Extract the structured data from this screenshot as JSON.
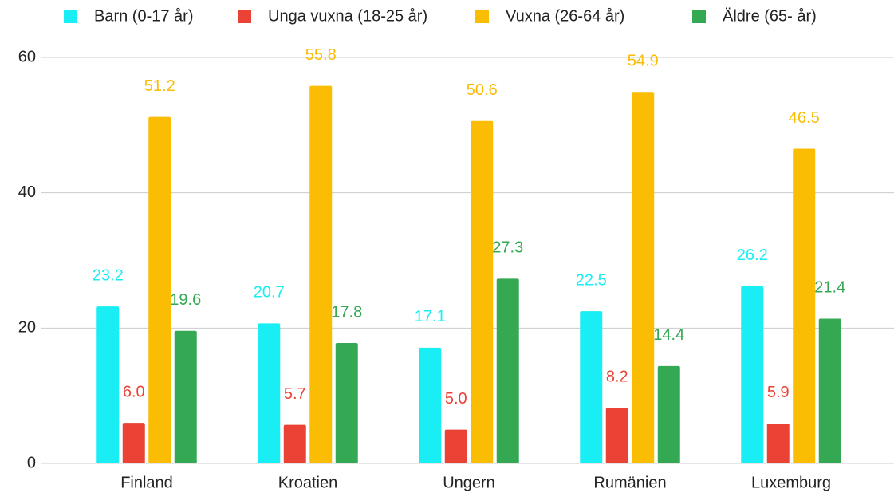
{
  "chart_data": {
    "type": "bar",
    "categories": [
      "Finland",
      "Kroatien",
      "Ungern",
      "Rumänien",
      "Luxemburg"
    ],
    "series": [
      {
        "name": "Barn (0-17 år)",
        "color": "#19eef5",
        "values": [
          23.2,
          20.7,
          17.1,
          22.5,
          26.2
        ],
        "value_labels": [
          "23.2",
          "20.7",
          "17.1",
          "22.5",
          "26.2"
        ]
      },
      {
        "name": "Unga vuxna (18-25 år)",
        "color": "#ea4335",
        "values": [
          6,
          5.7,
          5,
          8.2,
          5.9
        ],
        "value_labels": [
          "6.0",
          "5.7",
          "5.0",
          "8.2",
          "5.9"
        ]
      },
      {
        "name": "Vuxna (26-64 år)",
        "color": "#fbbc04",
        "values": [
          51.2,
          55.8,
          50.6,
          54.9,
          46.5
        ],
        "value_labels": [
          "51.2",
          "55.8",
          "50.6",
          "54.9",
          "46.5"
        ]
      },
      {
        "name": "Äldre (65- år)",
        "color": "#34a853",
        "values": [
          19.6,
          17.8,
          27.3,
          14.4,
          21.4
        ],
        "value_labels": [
          "19.6",
          "17.8",
          "27.3",
          "14.4",
          "21.4"
        ]
      }
    ],
    "ylim": [
      0,
      60
    ],
    "yticks": [
      0,
      20,
      40,
      60
    ],
    "grid": true,
    "legend": "top"
  }
}
